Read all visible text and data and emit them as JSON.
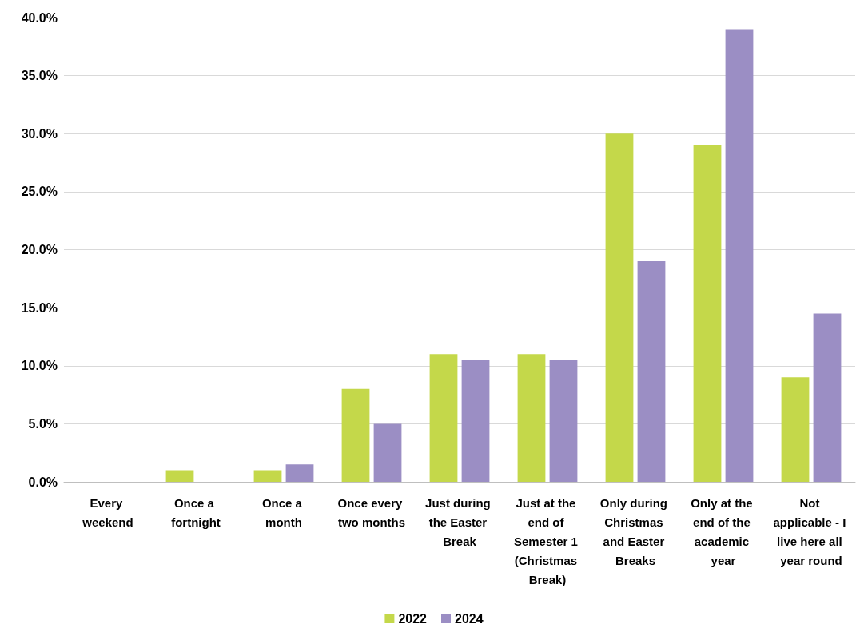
{
  "chart_data": {
    "type": "bar",
    "categories": [
      "Every weekend",
      "Once a fortnight",
      "Once a month",
      "Once every two months",
      "Just during the Easter Break",
      "Just at the end of Semester 1 (Christmas Break)",
      "Only during Christmas and Easter Breaks",
      "Only at the end of the academic year",
      "Not applicable - I live here all year round"
    ],
    "series": [
      {
        "name": "2022",
        "color": "#c4d84a",
        "values": [
          0,
          1,
          1,
          8,
          11,
          11,
          30,
          29,
          9
        ]
      },
      {
        "name": "2024",
        "color": "#9b8ec4",
        "values": [
          0,
          0,
          1.5,
          5,
          10.5,
          10.5,
          19,
          39,
          14.5
        ]
      }
    ],
    "ylim": [
      0,
      40
    ],
    "yticks": [
      {
        "value": 0,
        "label": "0.0%"
      },
      {
        "value": 5,
        "label": "5.0%"
      },
      {
        "value": 10,
        "label": "10.0%"
      },
      {
        "value": 15,
        "label": "15.0%"
      },
      {
        "value": 20,
        "label": "20.0%"
      },
      {
        "value": 25,
        "label": "25.0%"
      },
      {
        "value": 30,
        "label": "30.0%"
      },
      {
        "value": 35,
        "label": "35.0%"
      },
      {
        "value": 40,
        "label": "40.0%"
      }
    ],
    "grid": "y",
    "legend": "bottom"
  }
}
